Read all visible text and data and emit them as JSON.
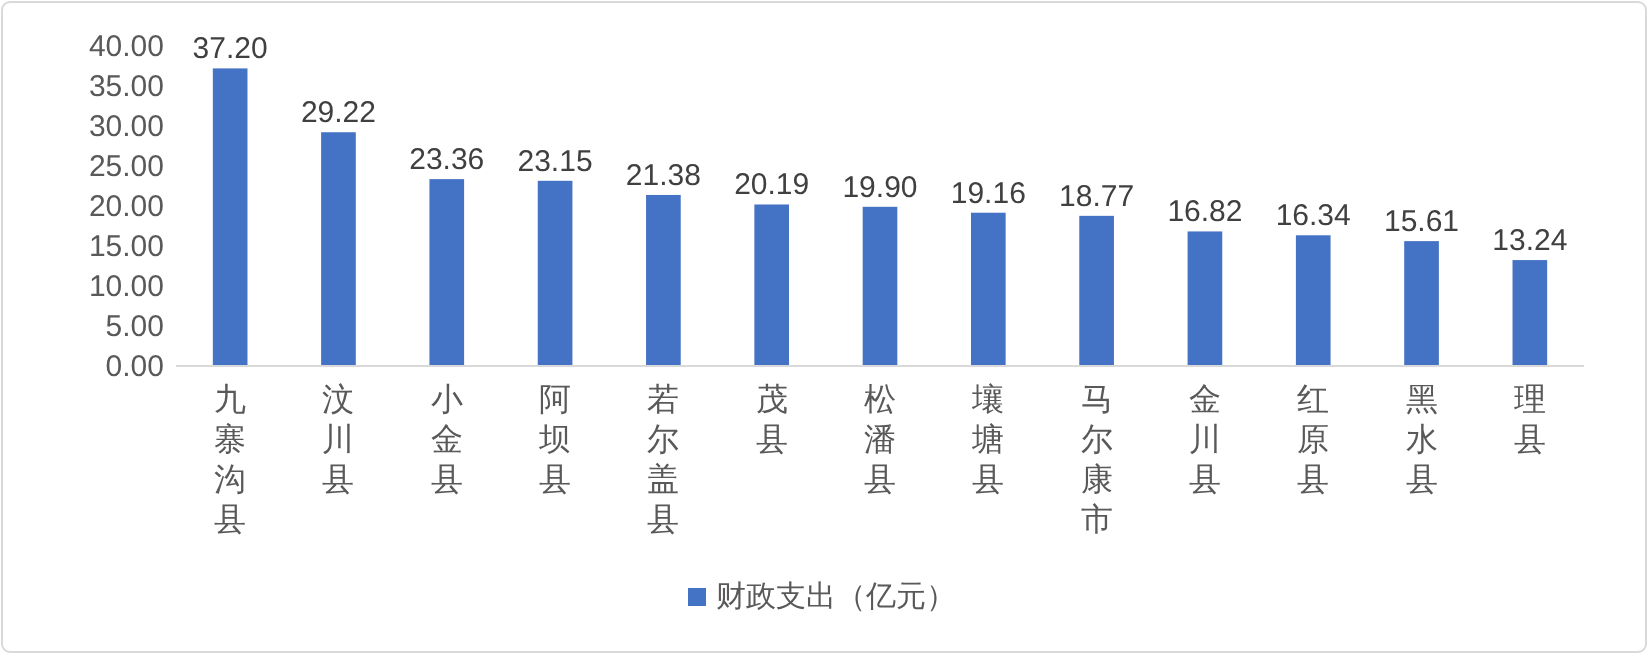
{
  "chart_data": {
    "type": "bar",
    "categories": [
      "九寨沟县",
      "汶川县",
      "小金县",
      "阿坝县",
      "若尔盖县",
      "茂县",
      "松潘县",
      "壤塘县",
      "马尔康市",
      "金川县",
      "红原县",
      "黑水县",
      "理县"
    ],
    "series": [
      {
        "name": "财政支出（亿元）",
        "color": "#4472c4",
        "values": [
          37.2,
          29.22,
          23.36,
          23.15,
          21.38,
          20.19,
          19.9,
          19.16,
          18.77,
          16.82,
          16.34,
          15.61,
          13.24
        ],
        "value_labels": [
          "37.20",
          "29.22",
          "23.36",
          "23.15",
          "21.38",
          "20.19",
          "19.90",
          "19.16",
          "18.77",
          "16.82",
          "16.34",
          "15.61",
          "13.24"
        ]
      }
    ],
    "ylim": [
      0,
      40
    ],
    "yticks": [
      {
        "value": 0,
        "label": "0.00"
      },
      {
        "value": 5,
        "label": "5.00"
      },
      {
        "value": 10,
        "label": "10.00"
      },
      {
        "value": 15,
        "label": "15.00"
      },
      {
        "value": 20,
        "label": "20.00"
      },
      {
        "value": 25,
        "label": "25.00"
      },
      {
        "value": 30,
        "label": "30.00"
      },
      {
        "value": 35,
        "label": "35.00"
      },
      {
        "value": 40,
        "label": "40.00"
      }
    ],
    "grid": false,
    "legend": "bottom"
  }
}
